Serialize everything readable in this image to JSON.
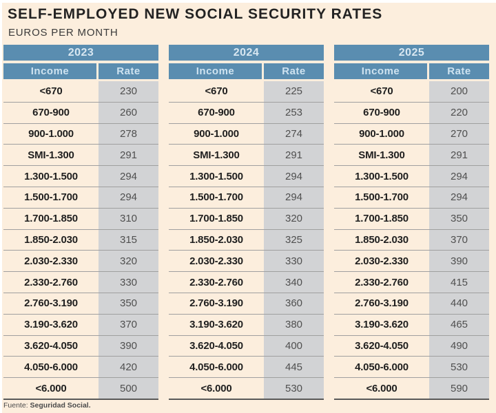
{
  "header": {
    "title": "SELF-EMPLOYED NEW SOCIAL SECURITY RATES",
    "subtitle": "EUROS PER MONTH"
  },
  "footer": {
    "prefix": "Fuente:",
    "source": "Seguridad Social."
  },
  "colors": {
    "background_cream": "#fceedd",
    "header_blue": "#5a8db0",
    "header_text_light_blue": "#d8e7f1",
    "rate_cell_gray": "#d2d3d5",
    "income_text": "#1f1f1f",
    "rate_text": "#4f4f4f"
  },
  "chart_data": {
    "type": "table",
    "title": "SELF-EMPLOYED NEW SOCIAL SECURITY RATES",
    "unit": "EUROS PER MONTH",
    "income_brackets": [
      "<670",
      "670-900",
      "900-1.000",
      "SMI-1.300",
      "1.300-1.500",
      "1.500-1.700",
      "1.700-1.850",
      "1.850-2.030",
      "2.030-2.330",
      "2.330-2.760",
      "2.760-3.190",
      "3.190-3.620",
      "3.620-4.050",
      "4.050-6.000",
      "<6.000"
    ],
    "tables": [
      {
        "year": "2023",
        "columns": [
          "Income",
          "Rate"
        ],
        "rows": [
          {
            "income": "<670",
            "rate": 230
          },
          {
            "income": "670-900",
            "rate": 260
          },
          {
            "income": "900-1.000",
            "rate": 278
          },
          {
            "income": "SMI-1.300",
            "rate": 291
          },
          {
            "income": "1.300-1.500",
            "rate": 294
          },
          {
            "income": "1.500-1.700",
            "rate": 294
          },
          {
            "income": "1.700-1.850",
            "rate": 310
          },
          {
            "income": "1.850-2.030",
            "rate": 315
          },
          {
            "income": "2.030-2.330",
            "rate": 320
          },
          {
            "income": "2.330-2.760",
            "rate": 330
          },
          {
            "income": "2.760-3.190",
            "rate": 350
          },
          {
            "income": "3.190-3.620",
            "rate": 370
          },
          {
            "income": "3.620-4.050",
            "rate": 390
          },
          {
            "income": "4.050-6.000",
            "rate": 420
          },
          {
            "income": "<6.000",
            "rate": 500
          }
        ]
      },
      {
        "year": "2024",
        "columns": [
          "Income",
          "Rate"
        ],
        "rows": [
          {
            "income": "<670",
            "rate": 225
          },
          {
            "income": "670-900",
            "rate": 253
          },
          {
            "income": "900-1.000",
            "rate": 274
          },
          {
            "income": "SMI-1.300",
            "rate": 291
          },
          {
            "income": "1.300-1.500",
            "rate": 294
          },
          {
            "income": "1.500-1.700",
            "rate": 294
          },
          {
            "income": "1.700-1.850",
            "rate": 320
          },
          {
            "income": "1.850-2.030",
            "rate": 325
          },
          {
            "income": "2.030-2.330",
            "rate": 330
          },
          {
            "income": "2.330-2.760",
            "rate": 340
          },
          {
            "income": "2.760-3.190",
            "rate": 360
          },
          {
            "income": "3.190-3.620",
            "rate": 380
          },
          {
            "income": "3.620-4.050",
            "rate": 400
          },
          {
            "income": "4.050-6.000",
            "rate": 445
          },
          {
            "income": "<6.000",
            "rate": 530
          }
        ]
      },
      {
        "year": "2025",
        "columns": [
          "Income",
          "Rate"
        ],
        "rows": [
          {
            "income": "<670",
            "rate": 200
          },
          {
            "income": "670-900",
            "rate": 220
          },
          {
            "income": "900-1.000",
            "rate": 270
          },
          {
            "income": "SMI-1.300",
            "rate": 291
          },
          {
            "income": "1.300-1.500",
            "rate": 294
          },
          {
            "income": "1.500-1.700",
            "rate": 294
          },
          {
            "income": "1.700-1.850",
            "rate": 350
          },
          {
            "income": "1.850-2.030",
            "rate": 370
          },
          {
            "income": "2.030-2.330",
            "rate": 390
          },
          {
            "income": "2.330-2.760",
            "rate": 415
          },
          {
            "income": "2.760-3.190",
            "rate": 440
          },
          {
            "income": "3.190-3.620",
            "rate": 465
          },
          {
            "income": "3.620-4.050",
            "rate": 490
          },
          {
            "income": "4.050-6.000",
            "rate": 530
          },
          {
            "income": "<6.000",
            "rate": 590
          }
        ]
      }
    ]
  }
}
